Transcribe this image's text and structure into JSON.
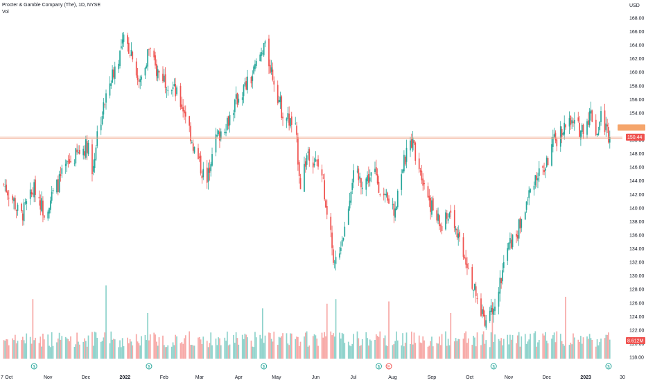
{
  "header": {
    "symbol_line": "Procter & Gamble Company (The), 1D, NYSE",
    "volume_label": "Vol"
  },
  "price_axis": {
    "currency": "USD",
    "ticks": [
      "168.00",
      "166.00",
      "164.00",
      "162.00",
      "160.00",
      "158.00",
      "156.00",
      "154.00",
      "152.00",
      "150.00",
      "148.00",
      "146.00",
      "144.00",
      "142.00",
      "140.00",
      "138.00",
      "136.00",
      "134.00",
      "132.00",
      "130.00",
      "128.00",
      "126.00",
      "124.00",
      "122.00",
      "120.00",
      "118.00"
    ]
  },
  "time_axis": {
    "labels": [
      "7",
      "Oct",
      "Nov",
      "Dec",
      "2022",
      "Feb",
      "Mar",
      "Apr",
      "May",
      "Jun",
      "Jul",
      "Aug",
      "Sep",
      "Oct",
      "Nov",
      "Dec",
      "2023",
      "30"
    ]
  },
  "last_price": {
    "value": 150.44,
    "label": "150.44"
  },
  "volume_label_value": "8.612M",
  "colors": {
    "up": "#26a69a",
    "down": "#ef5350",
    "up_volume": "#8fd3cc",
    "down_volume": "#f7a9a7",
    "last_price_line": "#f0a68a",
    "orange_marker": "#f5a56b",
    "text": "#131722",
    "dividend_icon": "#26a69a",
    "earnings_icon": "#ef5350"
  },
  "icons": {
    "dividend": "dividend-marker-icon",
    "earnings": "earnings-marker-icon",
    "dividend_glyph": "$",
    "earnings_glyph": "E"
  },
  "chart_data": {
    "type": "candlestick",
    "title": "Procter & Gamble Company (The), 1D, NYSE",
    "x_range": [
      "2021-09",
      "2023-01"
    ],
    "y_range": [
      118,
      168
    ],
    "grid": false,
    "waypoints": [
      {
        "date": "2021-09-27",
        "close": 143.5
      },
      {
        "date": "2021-10-05",
        "close": 141.0
      },
      {
        "date": "2021-10-10",
        "close": 138.5
      },
      {
        "date": "2021-10-22",
        "close": 143.0
      },
      {
        "date": "2021-10-29",
        "close": 139.5
      },
      {
        "date": "2021-11-17",
        "close": 146.5
      },
      {
        "date": "2021-12-03",
        "close": 149.5
      },
      {
        "date": "2021-12-06",
        "close": 145.0
      },
      {
        "date": "2021-12-10",
        "close": 151.0
      },
      {
        "date": "2021-12-20",
        "close": 158.5
      },
      {
        "date": "2021-12-31",
        "close": 164.5
      },
      {
        "date": "2022-01-07",
        "close": 163.0
      },
      {
        "date": "2022-01-12",
        "close": 158.0
      },
      {
        "date": "2022-01-20",
        "close": 163.5
      },
      {
        "date": "2022-01-25",
        "close": 160.5
      },
      {
        "date": "2022-02-07",
        "close": 158.0
      },
      {
        "date": "2022-02-18",
        "close": 154.0
      },
      {
        "date": "2022-02-25",
        "close": 148.5
      },
      {
        "date": "2022-03-07",
        "close": 143.5
      },
      {
        "date": "2022-03-11",
        "close": 149.0
      },
      {
        "date": "2022-03-25",
        "close": 153.5
      },
      {
        "date": "2022-04-01",
        "close": 156.5
      },
      {
        "date": "2022-04-11",
        "close": 159.0
      },
      {
        "date": "2022-04-21",
        "close": 164.0
      },
      {
        "date": "2022-04-29",
        "close": 159.0
      },
      {
        "date": "2022-05-05",
        "close": 154.5
      },
      {
        "date": "2022-05-16",
        "close": 151.5
      },
      {
        "date": "2022-05-20",
        "close": 143.5
      },
      {
        "date": "2022-05-26",
        "close": 148.5
      },
      {
        "date": "2022-06-06",
        "close": 145.0
      },
      {
        "date": "2022-06-16",
        "close": 131.5
      },
      {
        "date": "2022-06-24",
        "close": 137.0
      },
      {
        "date": "2022-06-30",
        "close": 144.5
      },
      {
        "date": "2022-07-08",
        "close": 144.0
      },
      {
        "date": "2022-07-18",
        "close": 145.0
      },
      {
        "date": "2022-07-26",
        "close": 141.0
      },
      {
        "date": "2022-08-02",
        "close": 139.5
      },
      {
        "date": "2022-08-08",
        "close": 145.5
      },
      {
        "date": "2022-08-16",
        "close": 150.0
      },
      {
        "date": "2022-08-22",
        "close": 146.5
      },
      {
        "date": "2022-09-01",
        "close": 140.0
      },
      {
        "date": "2022-09-09",
        "close": 137.0
      },
      {
        "date": "2022-09-16",
        "close": 139.5
      },
      {
        "date": "2022-09-30",
        "close": 131.5
      },
      {
        "date": "2022-10-07",
        "close": 126.0
      },
      {
        "date": "2022-10-14",
        "close": 123.5
      },
      {
        "date": "2022-10-24",
        "close": 128.0
      },
      {
        "date": "2022-10-31",
        "close": 134.0
      },
      {
        "date": "2022-11-08",
        "close": 136.5
      },
      {
        "date": "2022-11-14",
        "close": 140.0
      },
      {
        "date": "2022-11-21",
        "close": 144.5
      },
      {
        "date": "2022-11-30",
        "close": 146.0
      },
      {
        "date": "2022-12-05",
        "close": 149.0
      },
      {
        "date": "2022-12-13",
        "close": 151.5
      },
      {
        "date": "2022-12-19",
        "close": 152.5
      },
      {
        "date": "2022-12-28",
        "close": 151.5
      },
      {
        "date": "2023-01-05",
        "close": 154.0
      },
      {
        "date": "2023-01-10",
        "close": 151.0
      },
      {
        "date": "2023-01-13",
        "close": 153.5
      },
      {
        "date": "2023-01-20",
        "close": 150.44
      }
    ],
    "volume_spikes": [
      {
        "date": "2021-10-20",
        "millions": 13.0
      },
      {
        "date": "2021-12-17",
        "millions": 16.0
      },
      {
        "date": "2022-01-19",
        "millions": 10.0
      },
      {
        "date": "2022-04-20",
        "millions": 11.0
      },
      {
        "date": "2022-06-10",
        "millions": 12.0
      },
      {
        "date": "2022-06-17",
        "millions": 13.0
      },
      {
        "date": "2022-07-29",
        "millions": 12.5
      },
      {
        "date": "2022-09-16",
        "millions": 10.0
      },
      {
        "date": "2022-10-19",
        "millions": 11.0
      },
      {
        "date": "2022-12-16",
        "millions": 13.5
      }
    ],
    "dividend_dates": [
      "2021-10-21",
      "2022-01-20",
      "2022-04-21",
      "2022-07-21",
      "2022-10-20",
      "2023-01-19"
    ],
    "earnings_dates": [
      "2022-07-29"
    ]
  }
}
